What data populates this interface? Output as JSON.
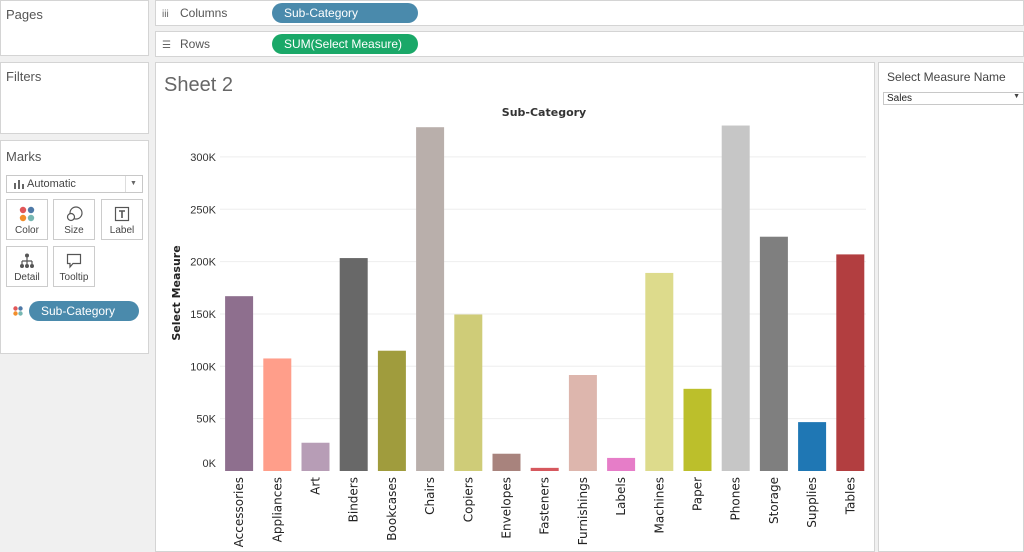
{
  "side": {
    "pages_title": "Pages",
    "filters_title": "Filters",
    "marks_title": "Marks",
    "mark_type": "Automatic",
    "mark_buttons": [
      {
        "label": "Color",
        "icon": "color-icon"
      },
      {
        "label": "Size",
        "icon": "size-icon"
      },
      {
        "label": "Label",
        "icon": "label-icon"
      },
      {
        "label": "Detail",
        "icon": "detail-icon"
      },
      {
        "label": "Tooltip",
        "icon": "tooltip-icon"
      }
    ],
    "color_pill": "Sub-Category"
  },
  "shelves": {
    "columns_label": "Columns",
    "columns_pill": "Sub-Category",
    "rows_label": "Rows",
    "rows_pill": "SUM(Select Measure)"
  },
  "view": {
    "sheet_title": "Sheet 2"
  },
  "parameter": {
    "title": "Select Measure Name",
    "value": "Sales"
  },
  "colors": {
    "pill_blue": "#4a8aac",
    "pill_green": "#1aa868"
  },
  "chart_data": {
    "type": "bar",
    "title": "Sub-Category",
    "xlabel": "",
    "ylabel": "Select Measure",
    "ylim": [
      0,
      330000
    ],
    "yticks": [
      0,
      50000,
      100000,
      150000,
      200000,
      250000,
      300000
    ],
    "ytick_labels": [
      "0K",
      "50K",
      "100K",
      "150K",
      "200K",
      "250K",
      "300K"
    ],
    "grid": true,
    "categories": [
      "Accessories",
      "Appliances",
      "Art",
      "Binders",
      "Bookcases",
      "Chairs",
      "Copiers",
      "Envelopes",
      "Fasteners",
      "Furnishings",
      "Labels",
      "Machines",
      "Paper",
      "Phones",
      "Storage",
      "Supplies",
      "Tables"
    ],
    "values": [
      167000,
      107500,
      27000,
      203400,
      114900,
      328400,
      149500,
      16500,
      3000,
      91700,
      12500,
      189200,
      78500,
      330000,
      223800,
      46700,
      206900
    ],
    "colors": [
      "#8e6f8e",
      "#ff9e8a",
      "#b79db6",
      "#686868",
      "#a09c3d",
      "#b9afab",
      "#cfcc78",
      "#a8837d",
      "#d6585e",
      "#ddb6ad",
      "#e67dc8",
      "#dddb8c",
      "#bcbf2b",
      "#c6c6c6",
      "#7f7f7f",
      "#1f77b4",
      "#b23e40"
    ]
  }
}
